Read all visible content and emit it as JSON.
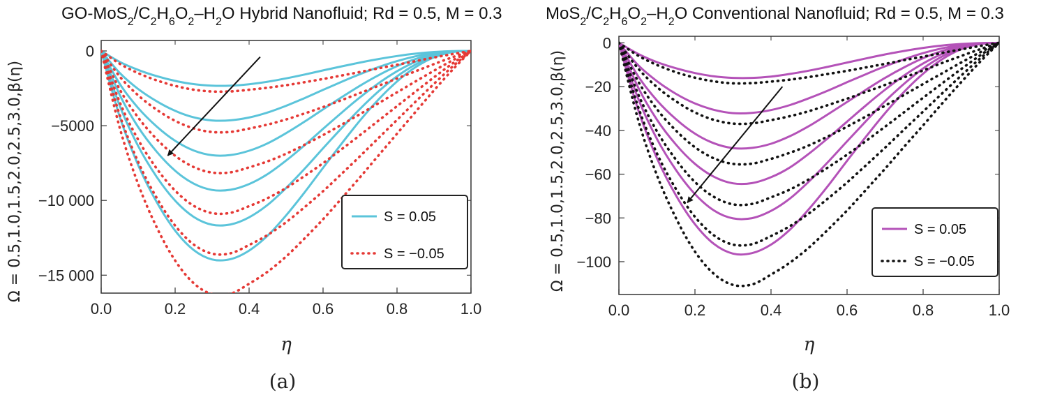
{
  "chart_data": [
    {
      "type": "line",
      "panel_label": "(a)",
      "title": {
        "parts": [
          {
            "t": "GO-MoS"
          },
          {
            "t": "2",
            "sub": true
          },
          {
            "t": "/C"
          },
          {
            "t": "2",
            "sub": true
          },
          {
            "t": "H"
          },
          {
            "t": "6",
            "sub": true
          },
          {
            "t": "O"
          },
          {
            "t": "2",
            "sub": true
          },
          {
            "t": "–H"
          },
          {
            "t": "2",
            "sub": true
          },
          {
            "t": "O Hybrid Nanofluid; Rd = 0.5, M = 0.3"
          }
        ]
      },
      "ylabel": "Ω = 0.5,1.0,1.5,2.0,2.5,3.0,β(η)",
      "xlabel": "η",
      "xlim": [
        0,
        1
      ],
      "ylim": [
        -16200,
        700
      ],
      "xticks": [
        0.0,
        0.2,
        0.4,
        0.6,
        0.8,
        1.0
      ],
      "xtick_labels": [
        "0.0",
        "0.2",
        "0.4",
        "0.6",
        "0.8",
        "1.0"
      ],
      "yticks": [
        0,
        -5000,
        -10000,
        -15000
      ],
      "ytick_labels": [
        "0",
        "−5000",
        "−10 000",
        "−15 000"
      ],
      "x": [
        0.0,
        0.05,
        0.1,
        0.15,
        0.2,
        0.25,
        0.3,
        0.35,
        0.4,
        0.45,
        0.5,
        0.55,
        0.6,
        0.65,
        0.7,
        0.75,
        0.8,
        0.85,
        0.9,
        0.95,
        1.0
      ],
      "series": [
        {
          "name": "S = 0.05",
          "Omega": 0.5,
          "style": "solid",
          "color": "#5bc4da",
          "values": [
            0,
            -732,
            -1272,
            -1684,
            -2003,
            -2219,
            -2325,
            -2321,
            -2226,
            -2060,
            -1834,
            -1577,
            -1303,
            -1034,
            -775,
            -541,
            -340,
            -181,
            -71,
            -13,
            0
          ]
        },
        {
          "name": "S = 0.05",
          "Omega": 1.0,
          "style": "solid",
          "color": "#5bc4da",
          "values": [
            0,
            -1464,
            -2544,
            -3368,
            -4006,
            -4438,
            -4650,
            -4642,
            -4452,
            -4120,
            -3668,
            -3154,
            -2606,
            -2068,
            -1550,
            -1082,
            -680,
            -362,
            -142,
            -26,
            0
          ]
        },
        {
          "name": "S = 0.05",
          "Omega": 1.5,
          "style": "solid",
          "color": "#5bc4da",
          "values": [
            0,
            -2196,
            -3816,
            -5052,
            -6009,
            -6657,
            -6975,
            -6963,
            -6678,
            -6180,
            -5502,
            -4731,
            -3909,
            -3102,
            -2325,
            -1623,
            -1020,
            -543,
            -213,
            -39,
            0
          ]
        },
        {
          "name": "S = 0.05",
          "Omega": 2.0,
          "style": "solid",
          "color": "#5bc4da",
          "values": [
            0,
            -2928,
            -5088,
            -6736,
            -8012,
            -8876,
            -9300,
            -9284,
            -8904,
            -8240,
            -7336,
            -6308,
            -5212,
            -4136,
            -3100,
            -2164,
            -1360,
            -724,
            -284,
            -52,
            0
          ]
        },
        {
          "name": "S = 0.05",
          "Omega": 2.5,
          "style": "solid",
          "color": "#5bc4da",
          "values": [
            0,
            -3660,
            -6360,
            -8420,
            -10015,
            -11095,
            -11625,
            -11605,
            -11130,
            -10300,
            -9170,
            -7885,
            -6515,
            -5170,
            -3875,
            -2705,
            -1700,
            -905,
            -355,
            -65,
            0
          ]
        },
        {
          "name": "S = 0.05",
          "Omega": 3.0,
          "style": "solid",
          "color": "#5bc4da",
          "values": [
            0,
            -4392,
            -7632,
            -10104,
            -12018,
            -13314,
            -13950,
            -13926,
            -13356,
            -12360,
            -11004,
            -9462,
            -7818,
            -6204,
            -4650,
            -3246,
            -2040,
            -1086,
            -426,
            -78,
            0
          ]
        },
        {
          "name": "S = −0.05",
          "Omega": 0.5,
          "style": "dotted",
          "color": "#e53935",
          "values": [
            0,
            -854,
            -1484,
            -1965,
            -2337,
            -2589,
            -2712,
            -2707,
            -2596,
            -2462,
            -2292,
            -2091,
            -1877,
            -1645,
            -1408,
            -1165,
            -923,
            -680,
            -440,
            -210,
            0
          ]
        },
        {
          "name": "S = −0.05",
          "Omega": 1.0,
          "style": "dotted",
          "color": "#e53935",
          "values": [
            0,
            -1708,
            -2968,
            -3930,
            -4674,
            -5178,
            -5424,
            -5414,
            -5192,
            -4924,
            -4584,
            -4182,
            -3754,
            -3290,
            -2816,
            -2330,
            -1846,
            -1360,
            -880,
            -420,
            0
          ]
        },
        {
          "name": "S = −0.05",
          "Omega": 1.5,
          "style": "dotted",
          "color": "#e53935",
          "values": [
            0,
            -2562,
            -4452,
            -5895,
            -7011,
            -7767,
            -8136,
            -8121,
            -7788,
            -7386,
            -6876,
            -6273,
            -5631,
            -4935,
            -4224,
            -3495,
            -2769,
            -2040,
            -1320,
            -630,
            0
          ]
        },
        {
          "name": "S = −0.05",
          "Omega": 2.0,
          "style": "dotted",
          "color": "#e53935",
          "values": [
            0,
            -3416,
            -5936,
            -7860,
            -9348,
            -10356,
            -10848,
            -10828,
            -10384,
            -9848,
            -9168,
            -8364,
            -7508,
            -6580,
            -5632,
            -4660,
            -3692,
            -2720,
            -1760,
            -840,
            0
          ]
        },
        {
          "name": "S = −0.05",
          "Omega": 2.5,
          "style": "dotted",
          "color": "#e53935",
          "values": [
            0,
            -4270,
            -7420,
            -9825,
            -11685,
            -12945,
            -13560,
            -13535,
            -12980,
            -12310,
            -11460,
            -10455,
            -9385,
            -8225,
            -7040,
            -5825,
            -4615,
            -3400,
            -2200,
            -1050,
            0
          ]
        },
        {
          "name": "S = −0.05",
          "Omega": 3.0,
          "style": "dotted",
          "color": "#e53935",
          "values": [
            0,
            -5124,
            -8904,
            -11790,
            -14022,
            -15534,
            -16272,
            -16242,
            -15576,
            -14772,
            -13752,
            -12546,
            -11262,
            -9870,
            -8448,
            -6990,
            -5538,
            -4080,
            -2640,
            -1260,
            0
          ]
        }
      ],
      "arrow": {
        "from": [
          0.43,
          -400
        ],
        "to": [
          0.18,
          -7000
        ]
      },
      "legend": {
        "placement": "right-middle",
        "entries": [
          {
            "label": "S = 0.05",
            "style": "solid",
            "color": "#5bc4da"
          },
          {
            "label": "S = −0.05",
            "style": "dotted",
            "color": "#e53935"
          }
        ]
      }
    },
    {
      "type": "line",
      "panel_label": "(b)",
      "title": {
        "parts": [
          {
            "t": "MoS"
          },
          {
            "t": "2",
            "sub": true
          },
          {
            "t": "/C"
          },
          {
            "t": "2",
            "sub": true
          },
          {
            "t": "H"
          },
          {
            "t": "6",
            "sub": true
          },
          {
            "t": "O"
          },
          {
            "t": "2",
            "sub": true
          },
          {
            "t": "–H"
          },
          {
            "t": "2",
            "sub": true
          },
          {
            "t": "O Conventional Nanofluid; Rd = 0.5, M = 0.3"
          }
        ]
      },
      "ylabel": "Ω = 0.5,1.0,1.5,2.0,2.5,3.0,β(η)",
      "xlabel": "η",
      "xlim": [
        0,
        1
      ],
      "ylim": [
        -115,
        3
      ],
      "xticks": [
        0.0,
        0.2,
        0.4,
        0.6,
        0.8,
        1.0
      ],
      "xtick_labels": [
        "0.0",
        "0.2",
        "0.4",
        "0.6",
        "0.8",
        "1.0"
      ],
      "yticks": [
        0,
        -20,
        -40,
        -60,
        -80,
        -100
      ],
      "ytick_labels": [
        "0",
        "−20",
        "−40",
        "−60",
        "−80",
        "−100"
      ],
      "x": [
        0.0,
        0.05,
        0.1,
        0.15,
        0.2,
        0.25,
        0.3,
        0.35,
        0.4,
        0.45,
        0.5,
        0.55,
        0.6,
        0.65,
        0.7,
        0.75,
        0.8,
        0.85,
        0.9,
        0.95,
        1.0
      ],
      "series": [
        {
          "name": "S = 0.05",
          "Omega": 0.5,
          "style": "solid",
          "color": "#b452b8",
          "values": [
            0,
            -5.0,
            -8.8,
            -11.6,
            -13.8,
            -15.3,
            -16.0,
            -16.0,
            -15.4,
            -14.2,
            -12.7,
            -10.9,
            -9.0,
            -7.1,
            -5.3,
            -3.7,
            -2.3,
            -1.2,
            -0.5,
            -0.1,
            0
          ]
        },
        {
          "name": "S = 0.05",
          "Omega": 1.0,
          "style": "solid",
          "color": "#b452b8",
          "values": [
            0,
            -10.1,
            -17.5,
            -23.3,
            -27.7,
            -30.6,
            -32.1,
            -32.0,
            -30.7,
            -28.4,
            -25.3,
            -21.8,
            -18.0,
            -14.3,
            -10.7,
            -7.5,
            -4.7,
            -2.5,
            -1.0,
            -0.2,
            0
          ]
        },
        {
          "name": "S = 0.05",
          "Omega": 1.5,
          "style": "solid",
          "color": "#b452b8",
          "values": [
            0,
            -15.1,
            -26.3,
            -34.9,
            -41.5,
            -45.9,
            -48.1,
            -48.0,
            -46.1,
            -42.6,
            -38.0,
            -32.6,
            -27.0,
            -21.4,
            -16.0,
            -11.2,
            -7.0,
            -3.7,
            -1.5,
            -0.3,
            0
          ]
        },
        {
          "name": "S = 0.05",
          "Omega": 2.0,
          "style": "solid",
          "color": "#b452b8",
          "values": [
            0,
            -20.2,
            -35.1,
            -46.5,
            -55.3,
            -61.2,
            -64.2,
            -64.1,
            -61.4,
            -56.9,
            -50.6,
            -43.5,
            -36.0,
            -28.5,
            -21.4,
            -14.9,
            -9.4,
            -5.0,
            -2.0,
            -0.4,
            0
          ]
        },
        {
          "name": "S = 0.05",
          "Omega": 2.5,
          "style": "solid",
          "color": "#b452b8",
          "values": [
            0,
            -25.2,
            -43.9,
            -58.1,
            -69.1,
            -76.6,
            -80.2,
            -80.1,
            -76.8,
            -71.1,
            -63.3,
            -54.4,
            -45.0,
            -35.7,
            -26.7,
            -18.7,
            -11.7,
            -6.2,
            -2.4,
            -0.4,
            0
          ]
        },
        {
          "name": "S = 0.05",
          "Omega": 3.0,
          "style": "solid",
          "color": "#b452b8",
          "values": [
            0,
            -30.3,
            -52.7,
            -69.7,
            -82.9,
            -91.9,
            -96.3,
            -96.1,
            -92.2,
            -85.3,
            -75.9,
            -65.3,
            -53.9,
            -42.8,
            -32.1,
            -22.4,
            -14.1,
            -7.5,
            -2.9,
            -0.5,
            0
          ]
        },
        {
          "name": "S = −0.05",
          "Omega": 0.5,
          "style": "dotted",
          "color": "#111111",
          "values": [
            0,
            -5.8,
            -10.1,
            -13.4,
            -15.9,
            -17.6,
            -18.5,
            -18.4,
            -17.7,
            -16.8,
            -15.6,
            -14.2,
            -12.8,
            -11.2,
            -9.6,
            -7.9,
            -6.3,
            -4.6,
            -3.0,
            -1.4,
            0
          ]
        },
        {
          "name": "S = −0.05",
          "Omega": 1.0,
          "style": "dotted",
          "color": "#111111",
          "values": [
            0,
            -11.6,
            -20.2,
            -26.7,
            -31.8,
            -35.2,
            -36.9,
            -36.8,
            -35.3,
            -33.5,
            -31.2,
            -28.4,
            -25.5,
            -22.4,
            -19.2,
            -15.8,
            -12.6,
            -9.2,
            -6.0,
            -2.9,
            0
          ]
        },
        {
          "name": "S = −0.05",
          "Omega": 1.5,
          "style": "dotted",
          "color": "#111111",
          "values": [
            0,
            -17.4,
            -30.3,
            -40.1,
            -47.7,
            -52.8,
            -55.3,
            -55.2,
            -53.0,
            -50.2,
            -46.8,
            -42.7,
            -38.3,
            -33.6,
            -28.7,
            -23.8,
            -18.8,
            -13.9,
            -9.0,
            -4.3,
            0
          ]
        },
        {
          "name": "S = −0.05",
          "Omega": 2.0,
          "style": "dotted",
          "color": "#111111",
          "values": [
            0,
            -23.2,
            -40.4,
            -53.4,
            -63.6,
            -70.4,
            -73.8,
            -73.6,
            -70.6,
            -67.0,
            -62.3,
            -56.9,
            -51.1,
            -44.8,
            -38.3,
            -31.7,
            -25.1,
            -18.5,
            -12.0,
            -5.7,
            0
          ]
        },
        {
          "name": "S = −0.05",
          "Omega": 2.5,
          "style": "dotted",
          "color": "#111111",
          "values": [
            0,
            -29.0,
            -50.5,
            -66.8,
            -79.5,
            -88.0,
            -92.2,
            -92.0,
            -88.3,
            -83.7,
            -77.9,
            -71.1,
            -63.8,
            -55.9,
            -47.9,
            -39.6,
            -31.4,
            -23.1,
            -15.0,
            -7.1,
            0
          ]
        },
        {
          "name": "S = −0.05",
          "Omega": 3.0,
          "style": "dotted",
          "color": "#111111",
          "values": [
            0,
            -34.8,
            -60.5,
            -80.1,
            -95.4,
            -105.6,
            -110.6,
            -110.4,
            -105.9,
            -100.4,
            -93.5,
            -85.3,
            -76.6,
            -67.1,
            -57.5,
            -47.5,
            -37.7,
            -27.7,
            -18.0,
            -8.6,
            0
          ]
        }
      ],
      "arrow": {
        "from": [
          0.43,
          -20
        ],
        "to": [
          0.18,
          -73
        ]
      },
      "legend": {
        "placement": "right-middle",
        "entries": [
          {
            "label": "S = 0.05",
            "style": "solid",
            "color": "#b452b8"
          },
          {
            "label": "S = −0.05",
            "style": "dotted",
            "color": "#111111"
          }
        ]
      }
    }
  ]
}
